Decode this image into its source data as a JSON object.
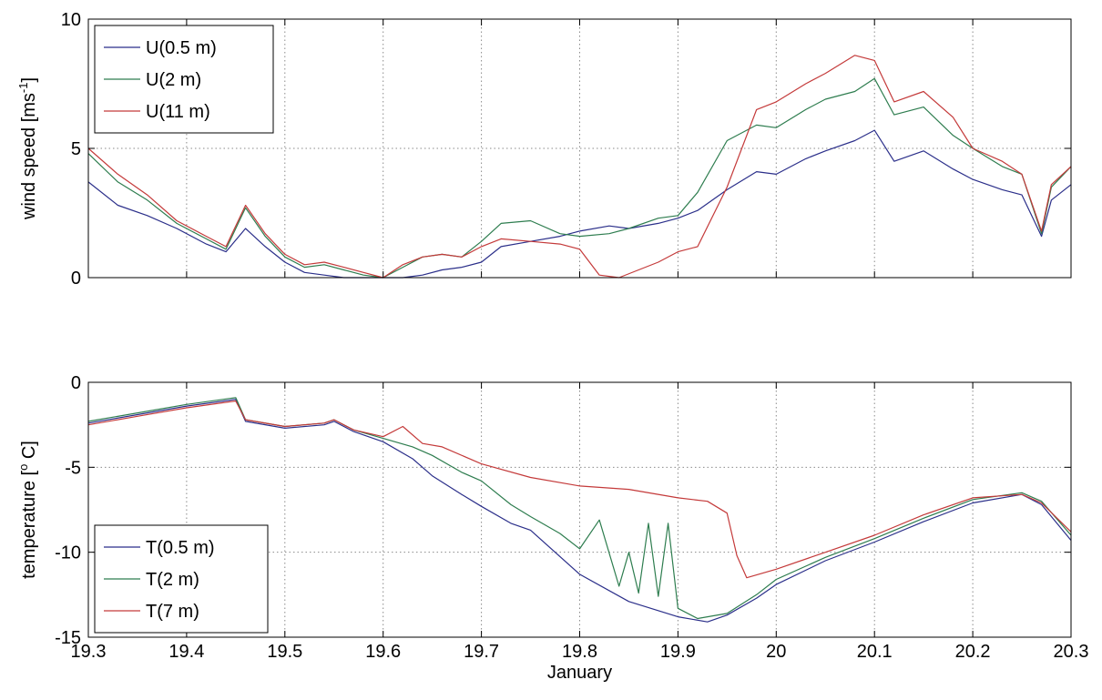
{
  "chart_data": [
    {
      "type": "line",
      "ylabel": "wind speed [ms",
      "ylabel_sup": "-1",
      "ylabel_end": "]",
      "xlabel": "",
      "xlim": [
        19.3,
        20.3
      ],
      "ylim": [
        0,
        10
      ],
      "xticks": [
        19.3,
        19.4,
        19.5,
        19.6,
        19.7,
        19.8,
        19.9,
        20.0,
        20.1,
        20.2,
        20.3
      ],
      "yticks": [
        0,
        5,
        10
      ],
      "ytick_labels": [
        "0",
        "5",
        "10"
      ],
      "grid": true,
      "legend_position": "top-left",
      "series": [
        {
          "name": "U(0.5 m)",
          "color": "#2b2f8a",
          "x": [
            19.3,
            19.33,
            19.36,
            19.39,
            19.42,
            19.44,
            19.46,
            19.48,
            19.5,
            19.52,
            19.54,
            19.56,
            19.58,
            19.6,
            19.62,
            19.64,
            19.66,
            19.68,
            19.7,
            19.72,
            19.75,
            19.78,
            19.8,
            19.83,
            19.85,
            19.88,
            19.9,
            19.92,
            19.95,
            19.98,
            20.0,
            20.03,
            20.05,
            20.08,
            20.1,
            20.12,
            20.15,
            20.18,
            20.2,
            20.23,
            20.25,
            20.27,
            20.28,
            20.3
          ],
          "values": [
            3.7,
            2.8,
            2.4,
            1.9,
            1.3,
            1.0,
            1.9,
            1.2,
            0.6,
            0.2,
            0.1,
            0.0,
            0.0,
            0.0,
            0.0,
            0.1,
            0.3,
            0.4,
            0.6,
            1.2,
            1.4,
            1.6,
            1.8,
            2.0,
            1.9,
            2.1,
            2.3,
            2.6,
            3.4,
            4.1,
            4.0,
            4.6,
            4.9,
            5.3,
            5.7,
            4.5,
            4.9,
            4.2,
            3.8,
            3.4,
            3.2,
            1.6,
            3.0,
            3.6
          ]
        },
        {
          "name": "U(2 m)",
          "color": "#2e7d4f",
          "x": [
            19.3,
            19.33,
            19.36,
            19.39,
            19.42,
            19.44,
            19.46,
            19.48,
            19.5,
            19.52,
            19.54,
            19.56,
            19.58,
            19.6,
            19.62,
            19.64,
            19.66,
            19.68,
            19.7,
            19.72,
            19.75,
            19.78,
            19.8,
            19.83,
            19.85,
            19.88,
            19.9,
            19.92,
            19.95,
            19.98,
            20.0,
            20.03,
            20.05,
            20.08,
            20.1,
            20.12,
            20.15,
            20.18,
            20.2,
            20.23,
            20.25,
            20.27,
            20.28,
            20.3
          ],
          "values": [
            4.8,
            3.7,
            3.0,
            2.1,
            1.5,
            1.1,
            2.7,
            1.6,
            0.8,
            0.4,
            0.5,
            0.3,
            0.1,
            0.0,
            0.4,
            0.8,
            0.9,
            0.8,
            1.4,
            2.1,
            2.2,
            1.7,
            1.6,
            1.7,
            1.9,
            2.3,
            2.4,
            3.3,
            5.3,
            5.9,
            5.8,
            6.5,
            6.9,
            7.2,
            7.7,
            6.3,
            6.6,
            5.5,
            5.0,
            4.3,
            4.0,
            1.7,
            3.5,
            4.3
          ]
        },
        {
          "name": "U(11 m)",
          "color": "#c43a3a",
          "x": [
            19.3,
            19.33,
            19.36,
            19.39,
            19.42,
            19.44,
            19.46,
            19.48,
            19.5,
            19.52,
            19.54,
            19.56,
            19.58,
            19.6,
            19.62,
            19.64,
            19.66,
            19.68,
            19.7,
            19.72,
            19.75,
            19.78,
            19.8,
            19.82,
            19.84,
            19.86,
            19.88,
            19.9,
            19.92,
            19.95,
            19.98,
            20.0,
            20.03,
            20.05,
            20.08,
            20.1,
            20.12,
            20.15,
            20.18,
            20.2,
            20.23,
            20.25,
            20.27,
            20.28,
            20.3
          ],
          "values": [
            5.0,
            4.0,
            3.2,
            2.2,
            1.6,
            1.2,
            2.8,
            1.7,
            0.9,
            0.5,
            0.6,
            0.4,
            0.2,
            0.0,
            0.5,
            0.8,
            0.9,
            0.8,
            1.2,
            1.5,
            1.4,
            1.3,
            1.1,
            0.1,
            0.0,
            0.3,
            0.6,
            1.0,
            1.2,
            3.5,
            6.5,
            6.8,
            7.5,
            7.9,
            8.6,
            8.4,
            6.8,
            7.2,
            6.2,
            5.0,
            4.5,
            4.0,
            1.8,
            3.6,
            4.3
          ]
        }
      ]
    },
    {
      "type": "line",
      "ylabel": "temperature [",
      "ylabel_sup": "o",
      "ylabel_end": " C]",
      "xlabel": "January",
      "xlim": [
        19.3,
        20.3
      ],
      "ylim": [
        -15,
        0
      ],
      "xticks": [
        19.3,
        19.4,
        19.5,
        19.6,
        19.7,
        19.8,
        19.9,
        20.0,
        20.1,
        20.2,
        20.3
      ],
      "xtick_labels": [
        "19.3",
        "19.4",
        "19.5",
        "19.6",
        "19.7",
        "19.8",
        "19.9",
        "20",
        "20.1",
        "20.2",
        "20.3"
      ],
      "yticks": [
        -15,
        -10,
        -5,
        0
      ],
      "ytick_labels": [
        "-15",
        "-10",
        "-5",
        "0"
      ],
      "grid": true,
      "legend_position": "bottom-left",
      "series": [
        {
          "name": "T(0.5 m)",
          "color": "#2b2f8a",
          "x": [
            19.3,
            19.35,
            19.4,
            19.45,
            19.46,
            19.5,
            19.54,
            19.55,
            19.57,
            19.6,
            19.63,
            19.65,
            19.68,
            19.7,
            19.73,
            19.75,
            19.8,
            19.85,
            19.9,
            19.93,
            19.95,
            19.98,
            20.0,
            20.05,
            20.1,
            20.15,
            20.2,
            20.25,
            20.27,
            20.3
          ],
          "values": [
            -2.4,
            -1.9,
            -1.4,
            -1.0,
            -2.3,
            -2.7,
            -2.5,
            -2.3,
            -2.9,
            -3.5,
            -4.5,
            -5.5,
            -6.6,
            -7.3,
            -8.3,
            -8.7,
            -11.3,
            -12.9,
            -13.8,
            -14.1,
            -13.7,
            -12.7,
            -11.9,
            -10.5,
            -9.4,
            -8.2,
            -7.1,
            -6.6,
            -7.2,
            -9.3
          ]
        },
        {
          "name": "T(2 m)",
          "color": "#2e7d4f",
          "x": [
            19.3,
            19.35,
            19.4,
            19.45,
            19.46,
            19.5,
            19.54,
            19.55,
            19.57,
            19.6,
            19.63,
            19.65,
            19.68,
            19.7,
            19.73,
            19.75,
            19.78,
            19.8,
            19.82,
            19.84,
            19.85,
            19.86,
            19.87,
            19.88,
            19.89,
            19.9,
            19.92,
            19.95,
            19.98,
            20.0,
            20.05,
            20.1,
            20.15,
            20.2,
            20.25,
            20.27,
            20.3
          ],
          "values": [
            -2.3,
            -1.8,
            -1.3,
            -0.9,
            -2.2,
            -2.6,
            -2.4,
            -2.2,
            -2.8,
            -3.3,
            -3.8,
            -4.3,
            -5.3,
            -5.8,
            -7.2,
            -7.9,
            -8.9,
            -9.8,
            -8.1,
            -12.0,
            -10.0,
            -12.4,
            -8.3,
            -12.6,
            -8.3,
            -13.3,
            -13.9,
            -13.6,
            -12.5,
            -11.6,
            -10.3,
            -9.2,
            -8.0,
            -6.9,
            -6.5,
            -7.0,
            -9.0
          ]
        },
        {
          "name": "T(7 m)",
          "color": "#c43a3a",
          "x": [
            19.3,
            19.35,
            19.4,
            19.45,
            19.46,
            19.5,
            19.54,
            19.55,
            19.57,
            19.6,
            19.62,
            19.64,
            19.66,
            19.7,
            19.75,
            19.8,
            19.85,
            19.9,
            19.93,
            19.95,
            19.96,
            19.97,
            20.0,
            20.05,
            20.1,
            20.15,
            20.2,
            20.25,
            20.27,
            20.3
          ],
          "values": [
            -2.5,
            -2.0,
            -1.5,
            -1.1,
            -2.2,
            -2.6,
            -2.4,
            -2.2,
            -2.8,
            -3.2,
            -2.6,
            -3.6,
            -3.8,
            -4.8,
            -5.6,
            -6.1,
            -6.3,
            -6.8,
            -7.0,
            -7.7,
            -10.2,
            -11.5,
            -11.0,
            -10.0,
            -9.0,
            -7.8,
            -6.8,
            -6.6,
            -7.1,
            -8.8
          ]
        }
      ]
    }
  ]
}
